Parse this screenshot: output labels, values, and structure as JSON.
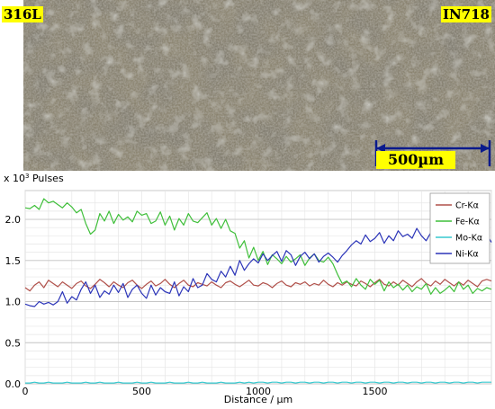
{
  "micrograph": {
    "left_label": "316L",
    "right_label": "IN718",
    "scale_bar_label": "500µm"
  },
  "chart_data": {
    "type": "line",
    "ylabel_prefix": "x 10",
    "ylabel_exp": "3",
    "ylabel_suffix": " Pulses",
    "xlabel": "Distance / µm",
    "xlim": [
      0,
      2000
    ],
    "ylim": [
      0,
      2.35
    ],
    "xticks": [
      0,
      500,
      1000,
      1500
    ],
    "xtick_labels": [
      "0",
      "500",
      "1000",
      "1500"
    ],
    "yticks": [
      0,
      0.5,
      1.0,
      1.5,
      2.0
    ],
    "ytick_labels": [
      "0.0",
      "0.5",
      "1.0",
      "1.5",
      "2.0"
    ],
    "grid": true,
    "legend_position": "top-right",
    "x": [
      0,
      20,
      40,
      60,
      80,
      100,
      120,
      140,
      160,
      180,
      200,
      220,
      240,
      260,
      280,
      300,
      320,
      340,
      360,
      380,
      400,
      420,
      440,
      460,
      480,
      500,
      520,
      540,
      560,
      580,
      600,
      620,
      640,
      660,
      680,
      700,
      720,
      740,
      760,
      780,
      800,
      820,
      840,
      860,
      880,
      900,
      920,
      940,
      960,
      980,
      1000,
      1020,
      1040,
      1060,
      1080,
      1100,
      1120,
      1140,
      1160,
      1180,
      1200,
      1220,
      1240,
      1260,
      1280,
      1300,
      1320,
      1340,
      1360,
      1380,
      1400,
      1420,
      1440,
      1460,
      1480,
      1500,
      1520,
      1540,
      1560,
      1580,
      1600,
      1620,
      1640,
      1660,
      1680,
      1700,
      1720,
      1740,
      1760,
      1780,
      1800,
      1820,
      1840,
      1860,
      1880,
      1900,
      1920,
      1940,
      1960,
      1980,
      2000
    ],
    "series": [
      {
        "name": "Cr-Kα",
        "color": "#b0504a",
        "values": [
          1.17,
          1.13,
          1.2,
          1.24,
          1.17,
          1.26,
          1.22,
          1.18,
          1.24,
          1.2,
          1.16,
          1.22,
          1.25,
          1.19,
          1.16,
          1.21,
          1.27,
          1.23,
          1.18,
          1.24,
          1.2,
          1.17,
          1.23,
          1.26,
          1.2,
          1.16,
          1.21,
          1.25,
          1.19,
          1.22,
          1.27,
          1.21,
          1.17,
          1.22,
          1.26,
          1.2,
          1.18,
          1.23,
          1.21,
          1.19,
          1.24,
          1.2,
          1.17,
          1.23,
          1.25,
          1.21,
          1.18,
          1.22,
          1.26,
          1.2,
          1.19,
          1.23,
          1.21,
          1.17,
          1.22,
          1.25,
          1.2,
          1.18,
          1.23,
          1.21,
          1.24,
          1.19,
          1.22,
          1.2,
          1.26,
          1.21,
          1.18,
          1.23,
          1.2,
          1.24,
          1.21,
          1.19,
          1.25,
          1.22,
          1.18,
          1.23,
          1.27,
          1.21,
          1.19,
          1.24,
          1.2,
          1.26,
          1.22,
          1.18,
          1.24,
          1.28,
          1.22,
          1.19,
          1.25,
          1.21,
          1.27,
          1.23,
          1.19,
          1.24,
          1.2,
          1.26,
          1.22,
          1.18,
          1.25,
          1.27,
          1.25
        ]
      },
      {
        "name": "Fe-Kα",
        "color": "#3fbf3a",
        "values": [
          2.14,
          2.13,
          2.17,
          2.12,
          2.25,
          2.2,
          2.22,
          2.18,
          2.14,
          2.2,
          2.15,
          2.08,
          2.12,
          1.95,
          1.82,
          1.87,
          2.07,
          1.98,
          2.1,
          1.95,
          2.06,
          1.99,
          2.03,
          1.97,
          2.1,
          2.05,
          2.07,
          1.95,
          1.98,
          2.09,
          1.93,
          2.04,
          1.87,
          2.01,
          1.93,
          2.07,
          1.98,
          1.96,
          2.02,
          2.08,
          1.93,
          2.01,
          1.89,
          2.0,
          1.86,
          1.83,
          1.65,
          1.74,
          1.53,
          1.66,
          1.5,
          1.61,
          1.45,
          1.57,
          1.52,
          1.46,
          1.55,
          1.48,
          1.52,
          1.57,
          1.44,
          1.53,
          1.58,
          1.5,
          1.48,
          1.54,
          1.46,
          1.33,
          1.22,
          1.25,
          1.18,
          1.28,
          1.2,
          1.15,
          1.27,
          1.21,
          1.26,
          1.13,
          1.24,
          1.17,
          1.21,
          1.14,
          1.2,
          1.12,
          1.18,
          1.15,
          1.22,
          1.09,
          1.17,
          1.1,
          1.14,
          1.19,
          1.12,
          1.24,
          1.15,
          1.2,
          1.1,
          1.16,
          1.13,
          1.17,
          1.15
        ]
      },
      {
        "name": "Mo-Kα",
        "color": "#37c9cf",
        "values": [
          0.01,
          0.01,
          0.02,
          0.01,
          0.01,
          0.02,
          0.01,
          0.01,
          0.01,
          0.02,
          0.01,
          0.01,
          0.01,
          0.02,
          0.01,
          0.01,
          0.02,
          0.01,
          0.01,
          0.01,
          0.02,
          0.01,
          0.01,
          0.01,
          0.02,
          0.01,
          0.01,
          0.02,
          0.01,
          0.01,
          0.01,
          0.02,
          0.01,
          0.01,
          0.01,
          0.02,
          0.01,
          0.01,
          0.02,
          0.01,
          0.01,
          0.01,
          0.02,
          0.01,
          0.01,
          0.01,
          0.02,
          0.01,
          0.02,
          0.01,
          0.02,
          0.02,
          0.01,
          0.02,
          0.02,
          0.01,
          0.02,
          0.02,
          0.01,
          0.02,
          0.02,
          0.01,
          0.02,
          0.02,
          0.01,
          0.02,
          0.02,
          0.01,
          0.02,
          0.02,
          0.01,
          0.02,
          0.02,
          0.01,
          0.02,
          0.02,
          0.01,
          0.02,
          0.02,
          0.01,
          0.02,
          0.02,
          0.01,
          0.02,
          0.02,
          0.01,
          0.02,
          0.02,
          0.01,
          0.02,
          0.02,
          0.01,
          0.02,
          0.02,
          0.01,
          0.02,
          0.02,
          0.01,
          0.02,
          0.02,
          0.02
        ]
      },
      {
        "name": "Ni-Kα",
        "color": "#2b34b8",
        "values": [
          0.97,
          0.95,
          0.94,
          1.0,
          0.97,
          0.99,
          0.96,
          1.0,
          1.12,
          0.98,
          1.06,
          1.02,
          1.15,
          1.24,
          1.1,
          1.2,
          1.05,
          1.13,
          1.09,
          1.2,
          1.11,
          1.22,
          1.05,
          1.15,
          1.2,
          1.1,
          1.04,
          1.2,
          1.08,
          1.17,
          1.12,
          1.1,
          1.24,
          1.07,
          1.18,
          1.12,
          1.28,
          1.17,
          1.2,
          1.34,
          1.27,
          1.24,
          1.37,
          1.3,
          1.43,
          1.32,
          1.5,
          1.38,
          1.46,
          1.52,
          1.47,
          1.58,
          1.5,
          1.56,
          1.61,
          1.49,
          1.62,
          1.57,
          1.44,
          1.55,
          1.6,
          1.52,
          1.58,
          1.48,
          1.55,
          1.59,
          1.54,
          1.48,
          1.56,
          1.62,
          1.69,
          1.74,
          1.7,
          1.81,
          1.73,
          1.77,
          1.84,
          1.71,
          1.8,
          1.74,
          1.86,
          1.79,
          1.82,
          1.77,
          1.89,
          1.8,
          1.74,
          1.84,
          1.78,
          1.87,
          1.82,
          1.85,
          1.78,
          1.83,
          1.79,
          1.87,
          1.81,
          1.85,
          1.8,
          1.82,
          1.72
        ]
      }
    ]
  }
}
